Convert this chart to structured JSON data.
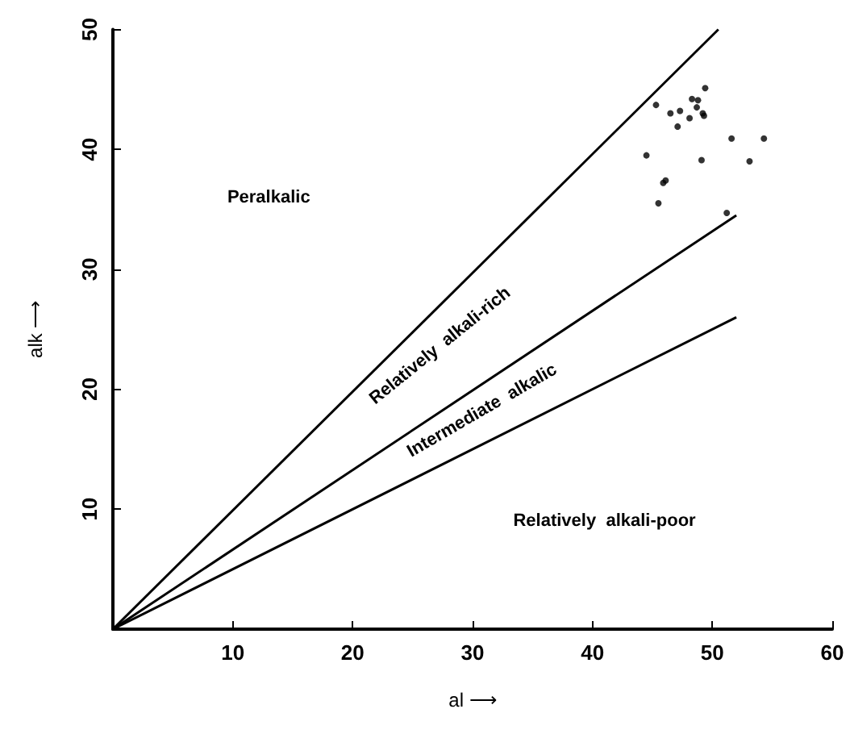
{
  "chart_data": {
    "type": "scatter",
    "xlabel": "al ⟶",
    "ylabel": "alk ⟶",
    "xlim": [
      0,
      60
    ],
    "xticks": [
      10,
      20,
      30,
      40,
      50,
      60
    ],
    "ylim": [
      0,
      50
    ],
    "yticks": [
      10,
      20,
      30,
      40,
      50
    ],
    "grid": false,
    "series": [
      {
        "color": "#000000",
        "marker": "circle",
        "x": [
          49.4,
          45.3,
          48.3,
          48.8,
          48.7,
          46.5,
          47.3,
          48.1,
          49.2,
          49.3,
          47.1,
          51.6,
          54.3,
          44.5,
          49.1,
          53.1,
          46.1,
          45.9,
          45.5,
          51.2
        ],
        "values": [
          45.1,
          43.7,
          44.2,
          44.1,
          43.5,
          43.0,
          43.2,
          42.6,
          43.0,
          42.8,
          41.9,
          40.9,
          40.9,
          39.5,
          39.1,
          39.0,
          37.4,
          37.2,
          35.5,
          34.7
        ]
      },
      {
        "type": "line",
        "color": "#000000",
        "marker": "none",
        "x": [
          0,
          50.5
        ],
        "values": [
          0,
          50
        ]
      },
      {
        "type": "line",
        "color": "#000000",
        "marker": "none",
        "x": [
          0,
          52
        ],
        "values": [
          0,
          34.5
        ]
      },
      {
        "type": "line",
        "color": "#000000",
        "marker": "none",
        "x": [
          0,
          52
        ],
        "values": [
          0,
          26
        ]
      }
    ],
    "annotations": [
      "Peralkalic",
      "Relatively  alkali-rich",
      "Intermediate  alkalic",
      "Relatively  alkali-poor"
    ]
  }
}
